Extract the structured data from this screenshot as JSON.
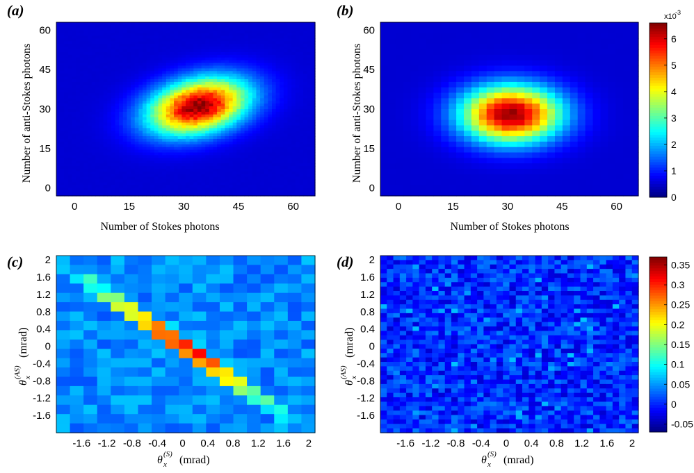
{
  "chart_data": [
    {
      "id": "a",
      "panel_label": "(a)",
      "type": "heatmap",
      "xlabel": "Number of Stokes photons",
      "ylabel": "Number of anti-Stokes photons",
      "xlim": [
        -5,
        66
      ],
      "ylim": [
        -3,
        63
      ],
      "xticks": [
        "0",
        "15",
        "30",
        "45",
        "60"
      ],
      "yticks": [
        "0",
        "15",
        "30",
        "45",
        "60"
      ],
      "bins": [
        66,
        64
      ],
      "peak": {
        "x": 34,
        "y": 31,
        "value": 6.6
      },
      "spread": {
        "sx": 9.5,
        "sy": 7.5,
        "correlation": 0.3
      },
      "colorbar": null
    },
    {
      "id": "b",
      "panel_label": "(b)",
      "type": "heatmap",
      "xlabel": "Number of Stokes photons",
      "ylabel": "Number of anti-Stokes photons",
      "xlim": [
        -5,
        66
      ],
      "ylim": [
        -3,
        63
      ],
      "xticks": [
        "0",
        "15",
        "30",
        "45",
        "60"
      ],
      "yticks": [
        "0",
        "15",
        "30",
        "45",
        "60"
      ],
      "bins": [
        34,
        32
      ],
      "peak": {
        "x": 31,
        "y": 28,
        "value": 6.6
      },
      "spread": {
        "sx": 9.5,
        "sy": 7.5,
        "correlation": 0
      },
      "colorbar": {
        "range": [
          0,
          6.6
        ],
        "ticks": [
          "0",
          "1",
          "2",
          "3",
          "4",
          "5",
          "6"
        ],
        "exponent_label": "x10",
        "exponent": "-3"
      }
    },
    {
      "id": "c",
      "panel_label": "(c)",
      "type": "heatmap",
      "xlabel_symbol": "θ",
      "xlabel_sub": "x",
      "xlabel_sup": "(S)",
      "xlabel_unit": "(mrad)",
      "ylabel_symbol": "θ",
      "ylabel_sub": "x",
      "ylabel_sup": "(AS)",
      "ylabel_unit": "(mrad)",
      "xlim": [
        -2.0,
        2.1
      ],
      "ylim": [
        -2.0,
        2.1
      ],
      "xticks": [
        "-1.6",
        "-1.2",
        "-0.8",
        "-0.4",
        "0",
        "0.4",
        "0.8",
        "1.2",
        "1.6",
        "2"
      ],
      "yticks": [
        "2",
        "1.6",
        "1.2",
        "0.8",
        "0.4",
        "0",
        "-0.4",
        "-0.8",
        "-1.2",
        "-1.6"
      ],
      "bins": [
        19,
        19
      ],
      "correlation": "anti-diagonal",
      "peak": {
        "x": 0.2,
        "y": -0.2,
        "value": 0.37
      },
      "colorbar": null
    },
    {
      "id": "d",
      "panel_label": "(d)",
      "type": "heatmap",
      "xlabel_symbol": "θ",
      "xlabel_sub": "x",
      "xlabel_sup": "(S)",
      "xlabel_unit": "(mrad)",
      "ylabel_symbol": "θ",
      "ylabel_sub": "x",
      "ylabel_sup": "(AS)",
      "ylabel_unit": "(mrad)",
      "xlim": [
        -2.0,
        2.1
      ],
      "ylim": [
        -2.0,
        2.1
      ],
      "xticks": [
        "-1.6",
        "-1.2",
        "-0.8",
        "-0.4",
        "0",
        "0.4",
        "0.8",
        "1.2",
        "1.6",
        "2"
      ],
      "yticks": [
        "2",
        "1.6",
        "1.2",
        "0.8",
        "0.4",
        "0",
        "-0.4",
        "-0.8",
        "-1.2",
        "-1.6"
      ],
      "bins": [
        40,
        40
      ],
      "correlation": "none",
      "colorbar": {
        "range": [
          -0.07,
          0.37
        ],
        "ticks": [
          "-0.05",
          "0",
          "0.05",
          "0.1",
          "0.15",
          "0.2",
          "0.25",
          "0.3",
          "0.35"
        ]
      }
    }
  ]
}
